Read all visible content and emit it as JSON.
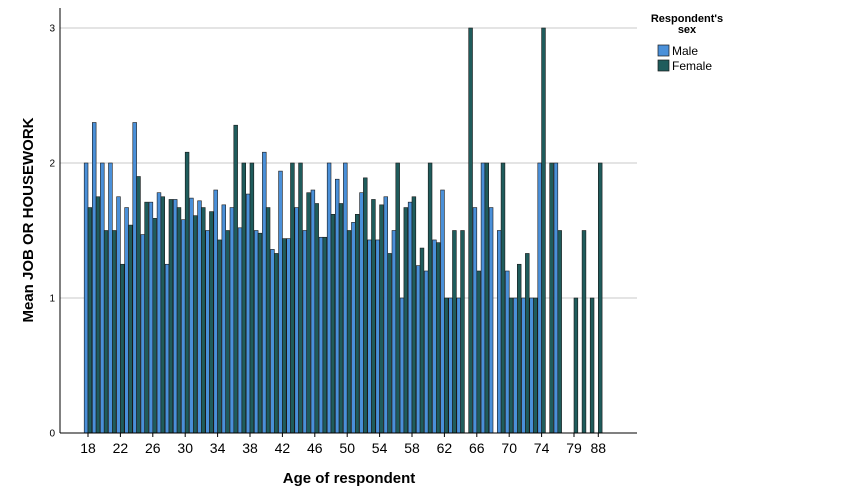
{
  "chart_data": {
    "type": "bar",
    "xlabel": "Age of respondent",
    "ylabel": "Mean JOB OR HOUSEWORK",
    "ylim": [
      0,
      3
    ],
    "yticks": [
      0,
      1,
      2,
      3
    ],
    "grid": true,
    "legend_position": "top-right",
    "legend_title": [
      "Respondent's",
      "sex"
    ],
    "tick_label_ages": [
      18,
      22,
      26,
      30,
      34,
      38,
      42,
      46,
      50,
      54,
      58,
      62,
      66,
      70,
      74,
      79,
      88
    ],
    "categories": [
      18,
      19,
      20,
      21,
      22,
      23,
      24,
      25,
      26,
      27,
      28,
      29,
      30,
      31,
      32,
      33,
      34,
      35,
      36,
      37,
      38,
      39,
      40,
      41,
      42,
      43,
      44,
      45,
      46,
      47,
      48,
      49,
      50,
      51,
      52,
      53,
      54,
      55,
      56,
      57,
      58,
      59,
      60,
      61,
      62,
      63,
      64,
      65,
      66,
      67,
      68,
      69,
      70,
      71,
      72,
      73,
      74,
      75,
      76,
      77,
      79,
      80,
      84,
      88
    ],
    "series": [
      {
        "name": "Male",
        "color": "#4a90d9",
        "values": [
          2.0,
          2.3,
          2.0,
          2.0,
          1.75,
          1.67,
          2.3,
          1.47,
          1.71,
          1.78,
          1.25,
          1.73,
          1.58,
          1.74,
          1.72,
          1.5,
          1.8,
          1.69,
          1.67,
          1.52,
          1.77,
          1.5,
          2.08,
          1.36,
          1.94,
          1.44,
          1.67,
          1.5,
          1.8,
          1.45,
          2.0,
          1.88,
          2.0,
          1.56,
          1.78,
          1.43,
          1.43,
          1.75,
          1.5,
          1.0,
          1.71,
          1.24,
          1.2,
          1.43,
          1.8,
          1.0,
          1.0,
          null,
          1.67,
          2.0,
          1.67,
          1.5,
          1.2,
          1.0,
          1.0,
          1.0,
          2.0,
          null,
          2.0,
          null,
          null,
          null,
          null,
          null
        ]
      },
      {
        "name": "Female",
        "color": "#1f5c5c",
        "values": [
          1.67,
          1.75,
          1.5,
          1.5,
          1.25,
          1.54,
          1.9,
          1.71,
          1.59,
          1.75,
          1.73,
          1.67,
          2.08,
          1.61,
          1.67,
          1.64,
          1.43,
          1.5,
          2.28,
          2.0,
          2.0,
          1.48,
          1.67,
          1.33,
          1.44,
          2.0,
          2.0,
          1.78,
          1.7,
          1.45,
          1.62,
          1.7,
          1.5,
          1.62,
          1.89,
          1.73,
          1.69,
          1.33,
          2.0,
          1.67,
          1.75,
          1.37,
          2.0,
          1.41,
          1.0,
          1.5,
          1.5,
          3.0,
          1.2,
          2.0,
          null,
          2.0,
          1.0,
          1.25,
          1.33,
          1.0,
          3.0,
          2.0,
          1.5,
          null,
          1.0,
          1.5,
          1.0,
          2.0
        ]
      }
    ]
  }
}
